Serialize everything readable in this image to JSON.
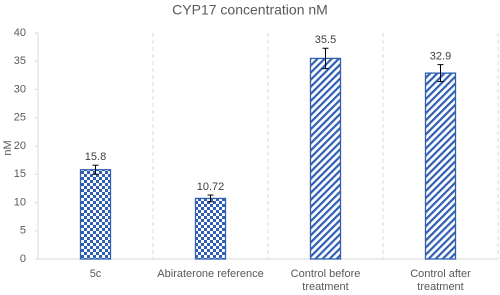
{
  "chart_data": {
    "type": "bar",
    "title": "CYP17 concentration nM",
    "y_label": "nM",
    "categories": [
      "5c",
      "Abiraterone reference",
      "Control before treatment",
      "Control after treatment"
    ],
    "values": [
      15.8,
      10.72,
      35.5,
      32.9
    ],
    "errors": [
      0.8,
      0.6,
      1.8,
      1.5
    ],
    "patterns": [
      "checker",
      "checker",
      "stripes",
      "stripes"
    ],
    "color": "#2f5fb3",
    "ylim": [
      0,
      40
    ],
    "yticks": [
      0,
      5,
      10,
      15,
      20,
      25,
      30,
      35,
      40
    ],
    "grid": "vertical-dashed"
  }
}
